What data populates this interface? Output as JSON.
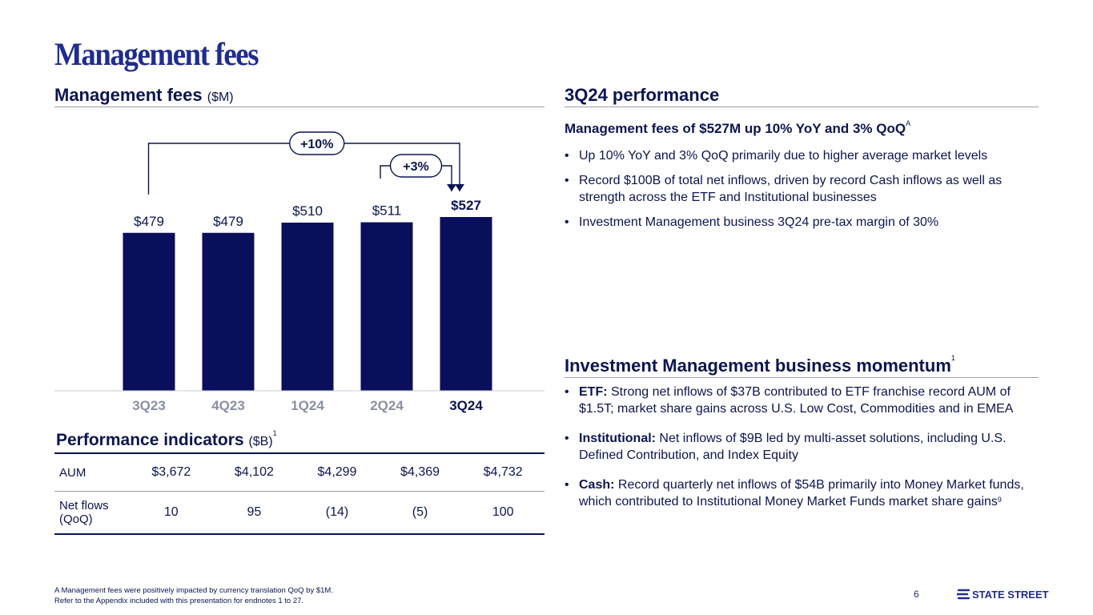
{
  "page": {
    "title": "Management fees",
    "page_number": "6",
    "brand": "STATE STREET",
    "footnote_line1": "A Management fees were positively impacted by currency translation QoQ by $1M.",
    "footnote_line2": "Refer to the Appendix included with this presentation for endnotes 1 to 27."
  },
  "left": {
    "heading": "Management fees",
    "heading_unit": "($M)",
    "badge_yoy": "+10%",
    "badge_qoq": "+3%"
  },
  "chart_data": {
    "type": "bar",
    "title": "Management fees ($M)",
    "categories": [
      "3Q23",
      "4Q23",
      "1Q24",
      "2Q24",
      "3Q24"
    ],
    "values": [
      479,
      479,
      510,
      511,
      527
    ],
    "value_labels": [
      "$479",
      "$479",
      "$510",
      "$511",
      "$527"
    ],
    "xlabel": "",
    "ylabel": "",
    "ylim": [
      0,
      527
    ],
    "grid": false,
    "annotations": [
      {
        "label": "+10%",
        "from": "3Q23",
        "to": "3Q24"
      },
      {
        "label": "+3%",
        "from": "2Q24",
        "to": "3Q24"
      }
    ]
  },
  "perf": {
    "heading": "Performance indicators",
    "heading_unit": "($B)",
    "heading_sup": "1",
    "rows": [
      {
        "label": "AUM",
        "values": [
          "$3,672",
          "$4,102",
          "$4,299",
          "$4,369",
          "$4,732"
        ]
      },
      {
        "label": "Net flows (QoQ)",
        "values": [
          "10",
          "95",
          "(14)",
          "(5)",
          "100"
        ]
      }
    ]
  },
  "right": {
    "heading": "3Q24 performance",
    "sub1": "Management fees of $527M up 10% YoY and 3% QoQ",
    "sub1_sup": "A",
    "bullets1": [
      "Up 10% YoY and 3% QoQ primarily due to higher average market levels",
      "Record $100B of total net inflows, driven by record Cash inflows as well as strength across the ETF and Institutional businesses",
      "Investment Management business 3Q24 pre-tax margin of 30%"
    ],
    "heading2": "Investment Management business momentum",
    "heading2_sup": "1",
    "b_etf_label": "ETF:",
    "b_etf_text": " Strong net inflows of $37B contributed to ETF franchise record AUM of $1.5T; market share gains across U.S. Low Cost, Commodities and in EMEA",
    "b_inst_label": "Institutional:",
    "b_inst_text": " Net inflows of $9B led by multi-asset solutions, including U.S. Defined Contribution, and Index Equity",
    "b_cash_label": "Cash:",
    "b_cash_text": " Record quarterly net inflows of $54B primarily into Money Market funds, which contributed to Institutional Money Market Funds market share gains",
    "b_cash_sup": "9"
  },
  "colors": {
    "bar": "#0a0f5c",
    "title": "#1f2d8f",
    "text": "#0b1551",
    "muted_tick": "#8a8fa3"
  }
}
